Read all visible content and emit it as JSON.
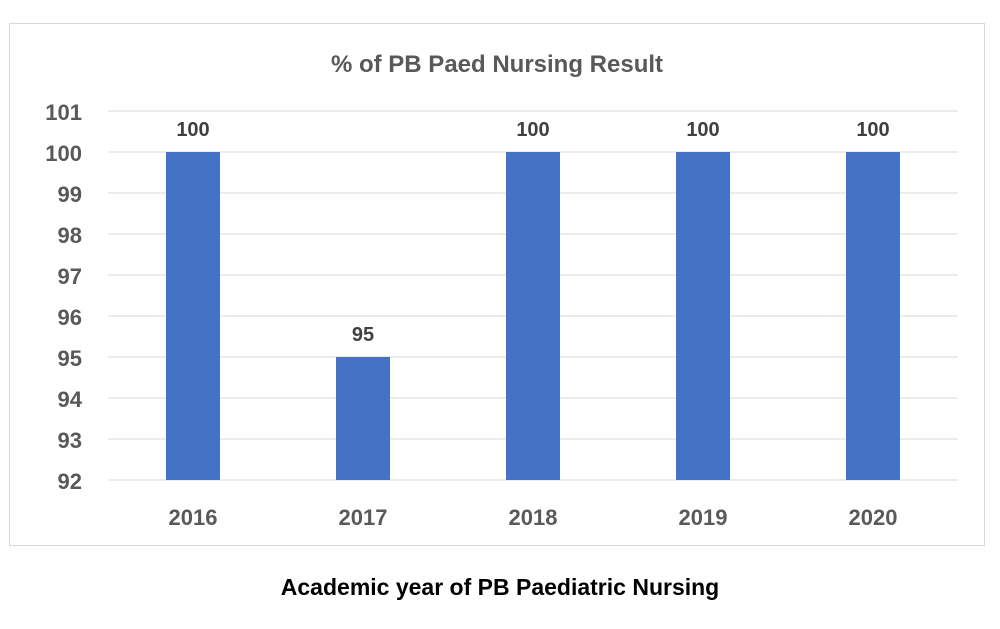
{
  "chart_data": {
    "type": "bar",
    "title": "% of PB Paed Nursing Result",
    "xlabel": "Academic year of PB Paediatric Nursing",
    "ylabel": "",
    "categories": [
      "2016",
      "2017",
      "2018",
      "2019",
      "2020"
    ],
    "values": [
      100,
      95,
      100,
      100,
      100
    ],
    "data_labels": [
      "100",
      "95",
      "100",
      "100",
      "100"
    ],
    "ylim": [
      92,
      101
    ],
    "yticks": [
      92,
      93,
      94,
      95,
      96,
      97,
      98,
      99,
      100,
      101
    ],
    "grid": true,
    "legend": "none",
    "bar_color": "#4472C4",
    "grid_color": "#d9d9d9",
    "text_color": "#595959"
  }
}
